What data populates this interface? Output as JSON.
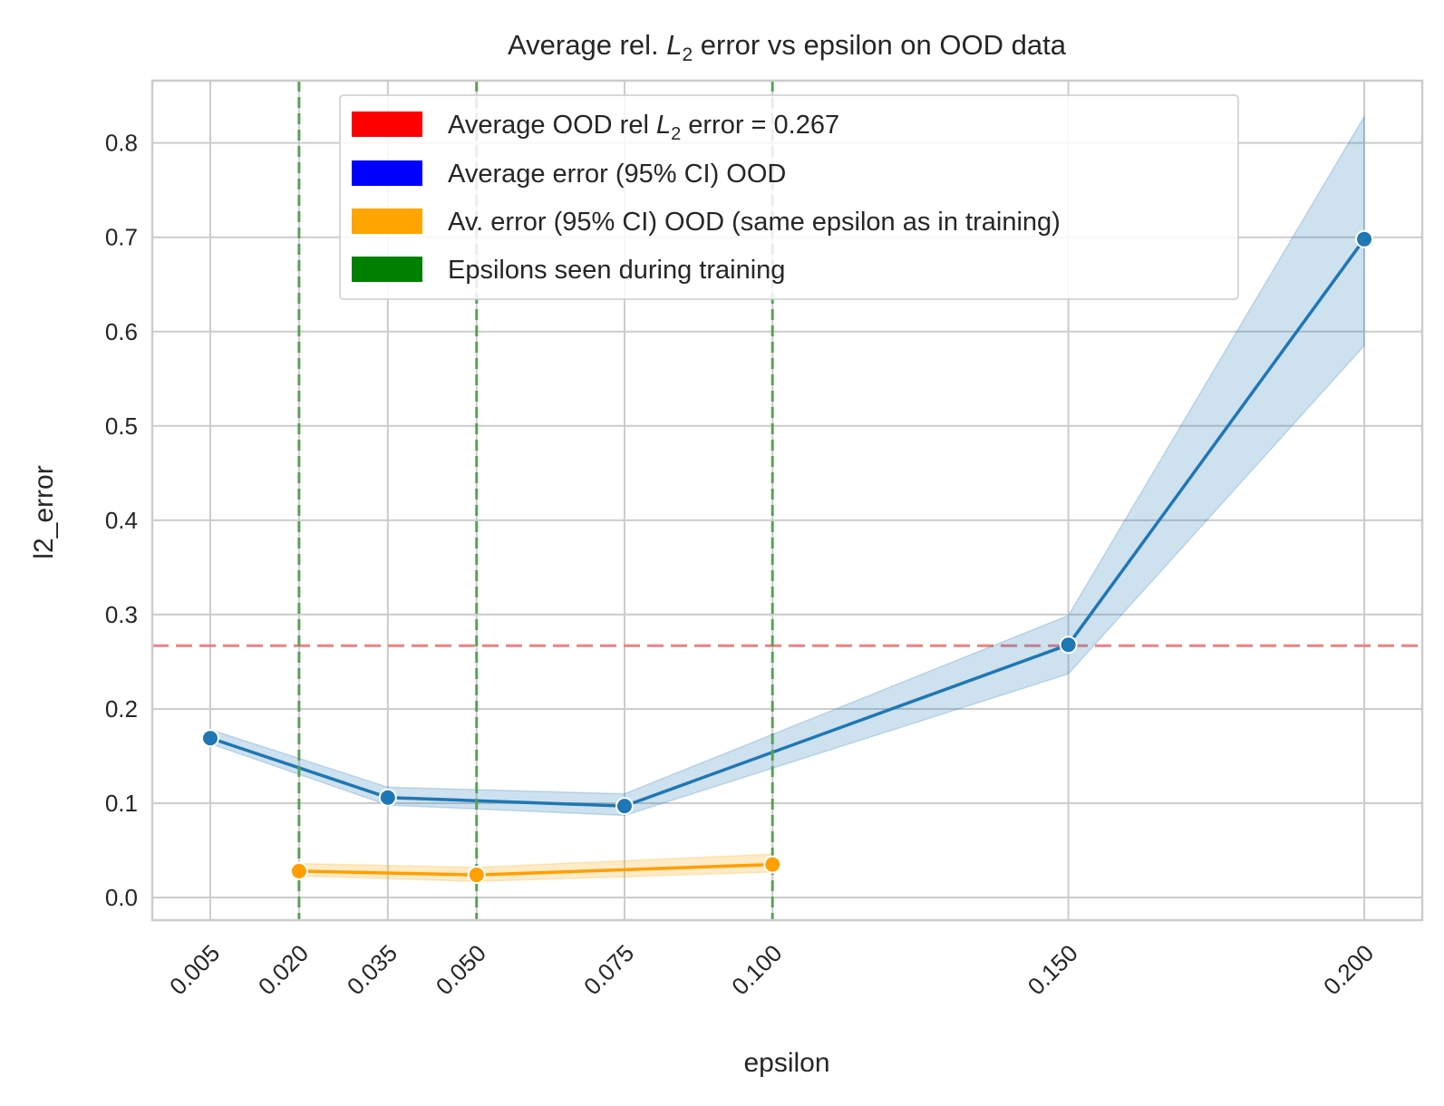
{
  "chart_data": {
    "type": "line",
    "title": {
      "main": "Average rel. ",
      "symbol": "L",
      "subscript": "2",
      "rest": " error vs epsilon on OOD data"
    },
    "xlabel": "epsilon",
    "ylabel": "l2_error",
    "xlim": [
      -0.0048,
      0.2098
    ],
    "ylim": [
      -0.024,
      0.866
    ],
    "x_scale": "linear",
    "grid": true,
    "x_ticks": [
      0.005,
      0.02,
      0.035,
      0.05,
      0.075,
      0.1,
      0.15,
      0.2
    ],
    "x_tick_labels": [
      "0.005",
      "0.020",
      "0.035",
      "0.050",
      "0.075",
      "0.100",
      "0.150",
      "0.200"
    ],
    "x_tick_rotation_deg": 45,
    "y_ticks": [
      0.0,
      0.1,
      0.2,
      0.3,
      0.4,
      0.5,
      0.6,
      0.7,
      0.8
    ],
    "y_tick_labels": [
      "0.0",
      "0.1",
      "0.2",
      "0.3",
      "0.4",
      "0.5",
      "0.6",
      "0.7",
      "0.8"
    ],
    "series": [
      {
        "name": "Average error (95% CI) OOD",
        "color": "#1f77b4",
        "band_color": "#1f77b4",
        "x": [
          0.005,
          0.035,
          0.075,
          0.15,
          0.2
        ],
        "values": [
          0.169,
          0.106,
          0.097,
          0.268,
          0.698
        ],
        "ci_low": [
          0.163,
          0.098,
          0.087,
          0.237,
          0.585
        ],
        "ci_high": [
          0.178,
          0.117,
          0.11,
          0.299,
          0.828
        ]
      },
      {
        "name": "Av. error (95% CI) OOD (same epsilon as in training)",
        "color": "#ff9f00",
        "band_color": "#ffa500",
        "x": [
          0.02,
          0.05,
          0.1
        ],
        "values": [
          0.028,
          0.024,
          0.035
        ],
        "ci_low": [
          0.023,
          0.017,
          0.027
        ],
        "ci_high": [
          0.036,
          0.032,
          0.046
        ]
      }
    ],
    "reference_line": {
      "y": 0.267,
      "color": "#f08080",
      "style": "dashed"
    },
    "training_epsilons": {
      "x": [
        0.02,
        0.05,
        0.1
      ],
      "color": "#5aa05a",
      "style": "dashed"
    },
    "legend": {
      "placement": "top-center",
      "entries": [
        {
          "color": "#ff0000",
          "text_before": "Average OOD rel ",
          "symbol": "L",
          "subscript": "2",
          "text_after": " error = 0.267"
        },
        {
          "color": "#0000ff",
          "text_before": "Average error (95% CI) OOD",
          "symbol": "",
          "subscript": "",
          "text_after": ""
        },
        {
          "color": "#ffa500",
          "text_before": "Av. error (95% CI) OOD (same epsilon as in training)",
          "symbol": "",
          "subscript": "",
          "text_after": ""
        },
        {
          "color": "#008000",
          "text_before": "Epsilons seen during training",
          "symbol": "",
          "subscript": "",
          "text_after": ""
        }
      ]
    }
  }
}
